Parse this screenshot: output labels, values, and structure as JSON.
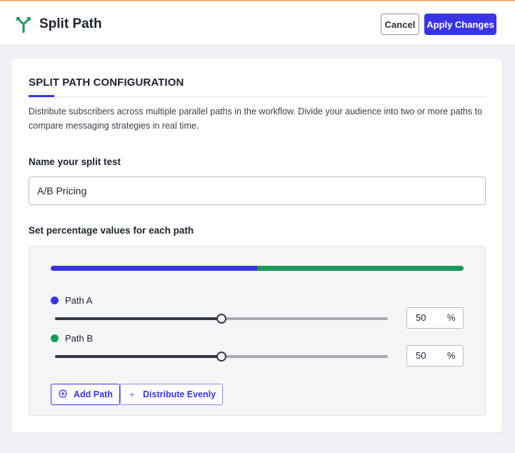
{
  "header": {
    "title": "Split Path",
    "cancel_label": "Cancel",
    "apply_label": "Apply Changes",
    "logo_icon": "split-arrow-icon",
    "logo_color": "#1a9a5a"
  },
  "config": {
    "section_title": "SPLIT PATH CONFIGURATION",
    "description": "Distribute subscribers across multiple parallel paths in the workflow. Divide your audience into two or more paths to compare messaging strategies in real time.",
    "name_label": "Name your split test",
    "name_value": "A/B Pricing",
    "percent_label": "Set percentage values for each path"
  },
  "paths": [
    {
      "name": "Path A",
      "value": "50",
      "percent": 50,
      "color": "#3834e6",
      "unit": "%"
    },
    {
      "name": "Path B",
      "value": "50",
      "percent": 50,
      "color": "#1a9a5a",
      "unit": "%"
    }
  ],
  "actions": {
    "add_path_label": "Add Path",
    "add_path_icon": "plus-circle-icon",
    "distribute_label": "Distribute Evenly",
    "distribute_icon": "divide-icon"
  },
  "colors": {
    "accent": "#3834e6",
    "green": "#1a9a5a"
  }
}
